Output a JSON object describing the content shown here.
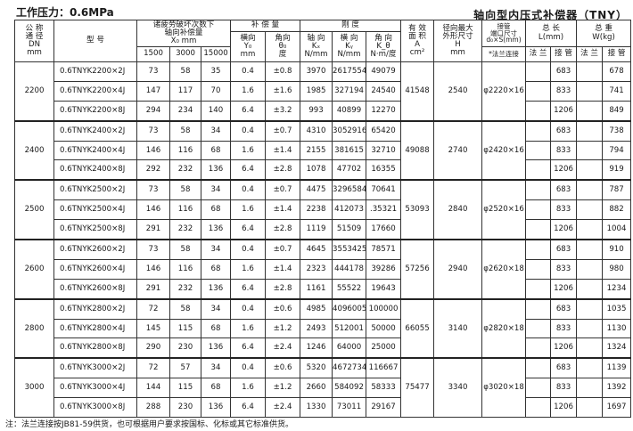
{
  "header": {
    "pressure": "工作压力：0.6MPa",
    "title": "轴向型内压式补偿器（TNY）"
  },
  "columns": {
    "dn": [
      "公 称",
      "通 径",
      "DN",
      "mm"
    ],
    "model": "型    号",
    "x0_group": [
      "诸疲劳破坏次数下",
      "轴向补偿量",
      "X₀     mm"
    ],
    "x0_cycles": [
      "1500",
      "3000",
      "15000"
    ],
    "comp_group": "补 偿 量",
    "y0": [
      "横向",
      "Y₀",
      "mm"
    ],
    "theta": [
      "角向",
      "θ₀",
      "度"
    ],
    "stiff_group": "刚  度",
    "kx": [
      "轴 向",
      "Kₓ",
      "N/mm"
    ],
    "ky": [
      "横 向",
      "Kᵧ",
      "N/mm"
    ],
    "ktheta": [
      "角 向",
      "K_θ",
      "N·m/度"
    ],
    "area": [
      "有 效",
      "面 积",
      "A",
      "cm²"
    ],
    "h": [
      "径向最大",
      "外形尺寸",
      "H",
      "mm"
    ],
    "pipe": [
      "接管",
      "端口尺寸",
      "d₀×S(mm)"
    ],
    "pipe_sub": "*法兰连接",
    "length": [
      "总  长",
      "L(mm)"
    ],
    "weight": [
      "总  重",
      "W(kg)"
    ],
    "flange": "法 兰",
    "joint": "接 管"
  },
  "groups": [
    {
      "dn": "2200",
      "area": "41548",
      "h": "2540",
      "pipe": "φ2220×16",
      "rows": [
        {
          "model": "0.6TNYK2200×2J",
          "x1500": "73",
          "x3000": "58",
          "x15000": "35",
          "y0": "0.4",
          "theta": "±0.8",
          "kx": "3970",
          "ky": "2617554",
          "kt": "49079",
          "l": "683",
          "w": "678"
        },
        {
          "model": "0.6TNYK2200×4J",
          "x1500": "147",
          "x3000": "117",
          "x15000": "70",
          "y0": "1.6",
          "theta": "±1.6",
          "kx": "1985",
          "ky": "327194",
          "kt": "24540",
          "l": "833",
          "w": "741"
        },
        {
          "model": "0.6TNYK2200×8J",
          "x1500": "294",
          "x3000": "234",
          "x15000": "140",
          "y0": "6.4",
          "theta": "±3.2",
          "kx": "993",
          "ky": "40899",
          "kt": "12270",
          "l": "1206",
          "w": "849"
        }
      ]
    },
    {
      "dn": "2400",
      "area": "49088",
      "h": "2740",
      "pipe": "φ2420×16",
      "rows": [
        {
          "model": "0.6TNYK2400×2J",
          "x1500": "73",
          "x3000": "58",
          "x15000": "34",
          "y0": "0.4",
          "theta": "±0.7",
          "kx": "4310",
          "ky": "3052916",
          "kt": "65420",
          "l": "683",
          "w": "738"
        },
        {
          "model": "0.6TNYK2400×4J",
          "x1500": "146",
          "x3000": "116",
          "x15000": "68",
          "y0": "1.6",
          "theta": "±1.4",
          "kx": "2155",
          "ky": "381615",
          "kt": "32710",
          "l": "833",
          "w": "794"
        },
        {
          "model": "0.6TNYK2400×8J",
          "x1500": "292",
          "x3000": "232",
          "x15000": "136",
          "y0": "6.4",
          "theta": "±2.8",
          "kx": "1078",
          "ky": "47702",
          "kt": "16355",
          "l": "1206",
          "w": "919"
        }
      ]
    },
    {
      "dn": "2500",
      "area": "53093",
      "h": "2840",
      "pipe": "φ2520×16",
      "rows": [
        {
          "model": "0.6TNYK2500×2J",
          "x1500": "73",
          "x3000": "58",
          "x15000": "34",
          "y0": "0.4",
          "theta": "±0.7",
          "kx": "4475",
          "ky": "3296584",
          "kt": "70641",
          "l": "683",
          "w": "787"
        },
        {
          "model": "0.6TNYK2500×4J",
          "x1500": "146",
          "x3000": "116",
          "x15000": "68",
          "y0": "1.6",
          "theta": "±1.4",
          "kx": "2238",
          "ky": "412073",
          "kt": ".35321",
          "l": "833",
          "w": "882"
        },
        {
          "model": "0.6TNYK2500×8J",
          "x1500": "291",
          "x3000": "232",
          "x15000": "136",
          "y0": "6.4",
          "theta": "±2.8",
          "kx": "1119",
          "ky": "51509",
          "kt": "17660",
          "l": "1206",
          "w": "1004"
        }
      ]
    },
    {
      "dn": "2600",
      "area": "57256",
      "h": "2940",
      "pipe": "φ2620×18",
      "rows": [
        {
          "model": "0.6TNYK2600×2J",
          "x1500": "73",
          "x3000": "58",
          "x15000": "34",
          "y0": "0.4",
          "theta": "±0.7",
          "kx": "4645",
          "ky": "3553425",
          "kt": "78571",
          "l": "683",
          "w": "910"
        },
        {
          "model": "0.6TNYK2600×4J",
          "x1500": "146",
          "x3000": "116",
          "x15000": "68",
          "y0": "1.6",
          "theta": "±1.4",
          "kx": "2323",
          "ky": "444178",
          "kt": "39286",
          "l": "833",
          "w": "980"
        },
        {
          "model": "0.6TNYK2600×8J",
          "x1500": "291",
          "x3000": "232",
          "x15000": "136",
          "y0": "6.4",
          "theta": "±2.8",
          "kx": "1161",
          "ky": "55522",
          "kt": "19643",
          "l": "1206",
          "w": "1234"
        }
      ]
    },
    {
      "dn": "2800",
      "area": "66055",
      "h": "3140",
      "pipe": "φ2820×18",
      "rows": [
        {
          "model": "0.6TNYK2800×2J",
          "x1500": "72",
          "x3000": "58",
          "x15000": "34",
          "y0": "0.4",
          "theta": "±0.6",
          "kx": "4985",
          "ky": "4096005",
          "kt": "100000",
          "l": "683",
          "w": "1035"
        },
        {
          "model": "0.6TNYK2800×4J",
          "x1500": "145",
          "x3000": "115",
          "x15000": "68",
          "y0": "1.6",
          "theta": "±1.2",
          "kx": "2493",
          "ky": "512001",
          "kt": "50000",
          "l": "833",
          "w": "1130"
        },
        {
          "model": "0.6TNYK2800×8J",
          "x1500": "290",
          "x3000": "230",
          "x15000": "136",
          "y0": "6.4",
          "theta": "±2.4",
          "kx": "1246",
          "ky": "64000",
          "kt": "25000",
          "l": "1206",
          "w": "1324"
        }
      ]
    },
    {
      "dn": "3000",
      "area": "75477",
      "h": "3340",
      "pipe": "φ3020×18",
      "rows": [
        {
          "model": "0.6TNYK3000×2J",
          "x1500": "72",
          "x3000": "57",
          "x15000": "34",
          "y0": "0.4",
          "theta": "±0.6",
          "kx": "5320",
          "ky": "4672734",
          "kt": "116667",
          "l": "683",
          "w": "1139"
        },
        {
          "model": "0.6TNYK3000×4J",
          "x1500": "144",
          "x3000": "115",
          "x15000": "68",
          "y0": "1.6",
          "theta": "±1.2",
          "kx": "2660",
          "ky": "584092",
          "kt": "58333",
          "l": "833",
          "w": "1392"
        },
        {
          "model": "0.6TNYK3000×8J",
          "x1500": "288",
          "x3000": "230",
          "x15000": "136",
          "y0": "6.4",
          "theta": "±2.4",
          "kx": "1330",
          "ky": "73011",
          "kt": "29167",
          "l": "1206",
          "w": "1697"
        }
      ]
    }
  ],
  "note": "注：法兰连接按JB81-59供货，也可根据用户要求按国标、化标或其它标准供货。"
}
